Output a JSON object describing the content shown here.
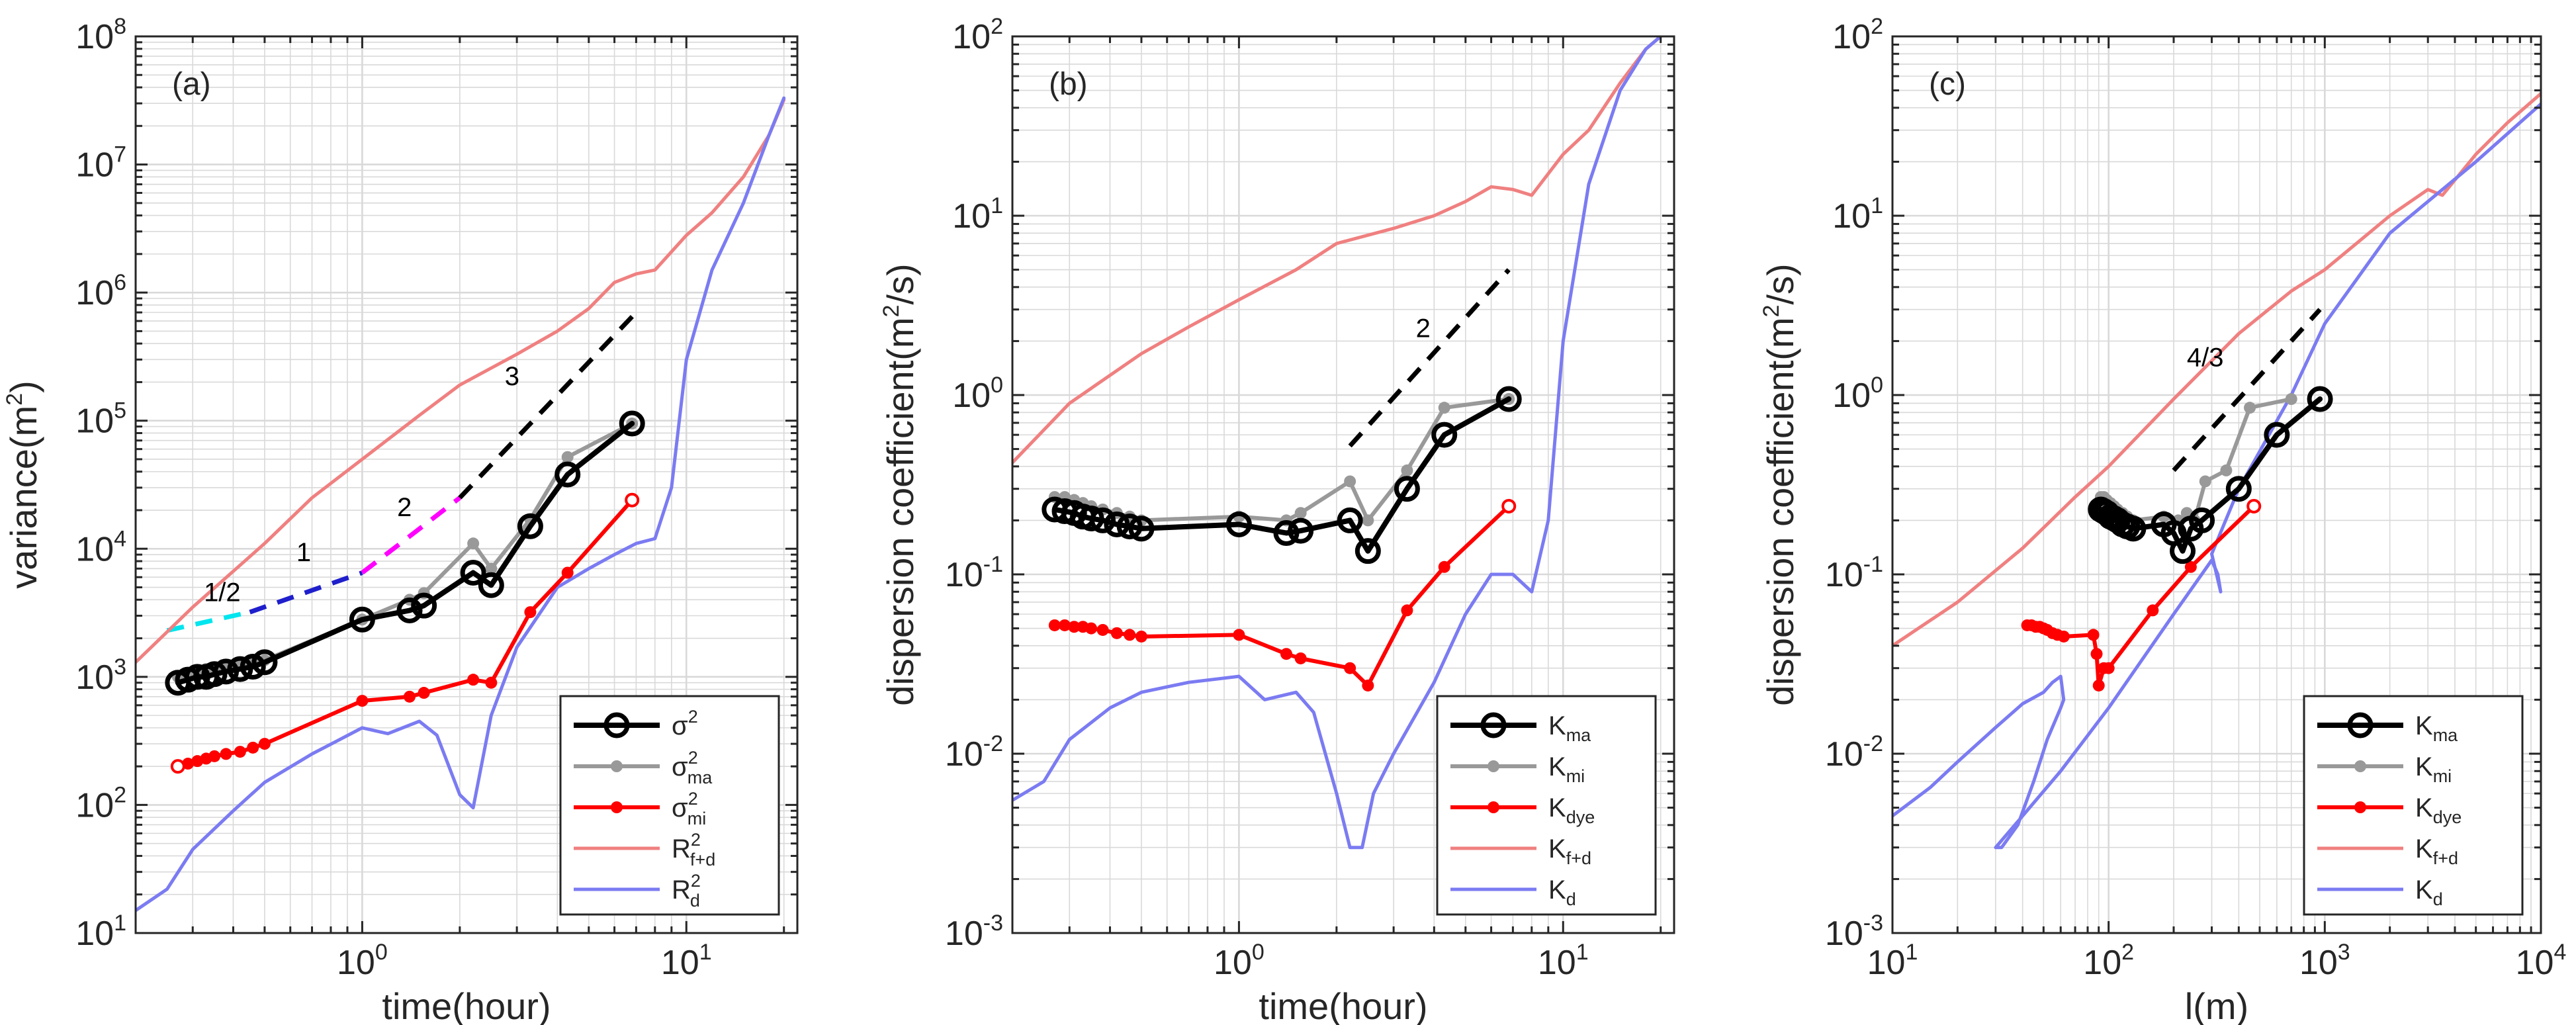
{
  "colors": {
    "black": "#000000",
    "gray": "#999999",
    "red": "#ff0000",
    "pink": "#f08080",
    "blue": "#7b7bf2",
    "cyan": "#00e5ee",
    "navy": "#1f1fcc",
    "magenta": "#ff00ff",
    "grid": "#d9d9d9",
    "axis": "#262626"
  },
  "chart_data": [
    {
      "type": "line",
      "panel_label": "(a)",
      "xlabel": "time(hour)",
      "ylabel": "variance(m",
      "ylabel_sup": "2",
      "ylabel_tail": ")",
      "xscale": "log",
      "yscale": "log",
      "xlim": [
        0.2,
        22
      ],
      "ylim": [
        10,
        100000000
      ],
      "xticks": [
        {
          "value": 1,
          "base": "10",
          "exp": "0"
        },
        {
          "value": 10,
          "base": "10",
          "exp": "1"
        }
      ],
      "yticks": [
        {
          "value": 10,
          "base": "10",
          "exp": "1"
        },
        {
          "value": 100,
          "base": "10",
          "exp": "2"
        },
        {
          "value": 1000,
          "base": "10",
          "exp": "3"
        },
        {
          "value": 10000,
          "base": "10",
          "exp": "4"
        },
        {
          "value": 100000,
          "base": "10",
          "exp": "5"
        },
        {
          "value": 1000000,
          "base": "10",
          "exp": "6"
        },
        {
          "value": 10000000,
          "base": "10",
          "exp": "7"
        },
        {
          "value": 100000000,
          "base": "10",
          "exp": "8"
        }
      ],
      "grid": true,
      "legend_position": "bottom-right",
      "series": [
        {
          "key": "rfd",
          "sym": "R",
          "sub": "f+d",
          "sup": "2",
          "color": "pink",
          "marker": "none",
          "width": 5,
          "x": [
            0.2,
            0.3,
            0.5,
            0.7,
            1,
            1.5,
            2,
            3,
            4,
            5,
            6,
            7,
            8,
            10,
            12,
            15,
            18,
            20
          ],
          "y": [
            1300,
            3500,
            11000,
            25000,
            50000,
            110000,
            190000,
            330000,
            500000,
            750000,
            1200000,
            1400000,
            1500000,
            2800000,
            4200000,
            8000000,
            17000000,
            32000000
          ]
        },
        {
          "key": "rd",
          "sym": "R",
          "sub": "d",
          "sup": "2",
          "color": "blue",
          "marker": "none",
          "width": 5,
          "x": [
            0.2,
            0.25,
            0.3,
            0.4,
            0.5,
            0.7,
            1.0,
            1.2,
            1.5,
            1.7,
            2.0,
            2.2,
            2.5,
            3,
            4,
            5,
            6,
            7,
            8,
            9,
            10,
            12,
            15,
            18,
            20
          ],
          "y": [
            15,
            22,
            45,
            90,
            150,
            250,
            400,
            360,
            450,
            350,
            120,
            95,
            500,
            1700,
            5000,
            7000,
            9000,
            11000,
            12000,
            30000,
            300000,
            1500000,
            5000000,
            17000000,
            33000000
          ]
        },
        {
          "key": "mi",
          "sym": "σ",
          "sub": "mi",
          "sup": "2",
          "color": "red",
          "marker": "dot",
          "width": 6,
          "x": [
            0.27,
            0.29,
            0.31,
            0.33,
            0.35,
            0.38,
            0.42,
            0.46,
            0.5,
            1.0,
            1.4,
            1.55,
            2.2,
            2.5,
            3.3,
            4.3,
            6.8
          ],
          "y": [
            200,
            210,
            220,
            230,
            240,
            250,
            260,
            280,
            300,
            650,
            700,
            750,
            950,
            900,
            3200,
            6500,
            24000
          ]
        },
        {
          "key": "ma_gray",
          "sym": "σ",
          "sub": "ma",
          "sup": "2",
          "color": "gray",
          "marker": "dot",
          "width": 6,
          "x": [
            0.27,
            0.29,
            0.31,
            0.33,
            0.35,
            0.38,
            0.42,
            0.46,
            0.5,
            1.0,
            1.4,
            1.55,
            2.2,
            2.5,
            3.3,
            4.3,
            6.8
          ],
          "y": [
            1000,
            1050,
            1100,
            1150,
            1150,
            1200,
            1250,
            1300,
            1350,
            2800,
            4000,
            4500,
            11000,
            7000,
            17000,
            52000,
            95000
          ]
        },
        {
          "key": "sigma",
          "sym": "σ",
          "sub": "",
          "sup": "2",
          "color": "black",
          "marker": "circle",
          "width": 8,
          "x": [
            0.27,
            0.29,
            0.31,
            0.33,
            0.35,
            0.38,
            0.42,
            0.46,
            0.5,
            1.0,
            1.4,
            1.55,
            2.2,
            2.5,
            3.3,
            4.3,
            6.8
          ],
          "y": [
            900,
            950,
            1000,
            1000,
            1050,
            1100,
            1150,
            1200,
            1300,
            2800,
            3300,
            3600,
            6500,
            5200,
            15000,
            38000,
            95000
          ]
        }
      ],
      "legend_order": [
        "sigma",
        "ma_gray",
        "mi",
        "rfd",
        "rd"
      ],
      "slopes": [
        {
          "color": "cyan",
          "x": [
            0.25,
            0.45
          ],
          "y": [
            2300,
            3200
          ],
          "label": "1/2",
          "label_at": [
            0.37,
            3900
          ]
        },
        {
          "color": "navy",
          "x": [
            0.45,
            1.0
          ],
          "y": [
            3200,
            6500
          ],
          "label": "1",
          "label_at": [
            0.66,
            8000
          ]
        },
        {
          "color": "magenta",
          "x": [
            1.0,
            2.0
          ],
          "y": [
            6500,
            25000
          ],
          "label": "2",
          "label_at": [
            1.35,
            18000
          ]
        },
        {
          "color": "black",
          "x": [
            2.0,
            7.0
          ],
          "y": [
            25000,
            700000
          ],
          "label": "3",
          "label_at": [
            2.9,
            190000
          ]
        }
      ]
    },
    {
      "type": "line",
      "panel_label": "(b)",
      "xlabel": "time(hour)",
      "ylabel": "dispersion coefficient(m",
      "ylabel_sup": "2",
      "ylabel_tail": "/s)",
      "xscale": "log",
      "yscale": "log",
      "xlim": [
        0.2,
        22
      ],
      "ylim": [
        0.001,
        100
      ],
      "xticks": [
        {
          "value": 1,
          "base": "10",
          "exp": "0"
        },
        {
          "value": 10,
          "base": "10",
          "exp": "1"
        }
      ],
      "yticks": [
        {
          "value": 0.001,
          "base": "10",
          "exp": "-3"
        },
        {
          "value": 0.01,
          "base": "10",
          "exp": "-2"
        },
        {
          "value": 0.1,
          "base": "10",
          "exp": "-1"
        },
        {
          "value": 1,
          "base": "10",
          "exp": "0"
        },
        {
          "value": 10,
          "base": "10",
          "exp": "1"
        },
        {
          "value": 100,
          "base": "10",
          "exp": "2"
        }
      ],
      "grid": true,
      "legend_position": "bottom-right",
      "series": [
        {
          "key": "kfd",
          "sym": "K",
          "sub": "f+d",
          "sup": "",
          "color": "pink",
          "marker": "none",
          "width": 5,
          "x": [
            0.2,
            0.3,
            0.5,
            0.7,
            1,
            1.5,
            2,
            3,
            4,
            5,
            6,
            7,
            8,
            10,
            12,
            15,
            18,
            20
          ],
          "y": [
            0.42,
            0.9,
            1.7,
            2.4,
            3.4,
            5,
            7,
            8.5,
            10,
            12,
            14.5,
            14,
            13,
            22,
            30,
            55,
            85,
            100
          ]
        },
        {
          "key": "kd",
          "sym": "K",
          "sub": "d",
          "sup": "",
          "color": "blue",
          "marker": "none",
          "width": 5,
          "x": [
            0.2,
            0.25,
            0.3,
            0.4,
            0.5,
            0.7,
            1.0,
            1.2,
            1.5,
            1.7,
            2.0,
            2.2,
            2.4,
            2.6,
            3,
            4,
            5,
            6,
            7,
            8,
            9,
            10,
            12,
            15,
            18,
            20
          ],
          "y": [
            0.0055,
            0.007,
            0.012,
            0.018,
            0.022,
            0.025,
            0.027,
            0.02,
            0.022,
            0.017,
            0.006,
            0.003,
            0.003,
            0.006,
            0.01,
            0.025,
            0.06,
            0.1,
            0.1,
            0.08,
            0.2,
            2,
            15,
            50,
            85,
            100
          ]
        },
        {
          "key": "kdye",
          "sym": "K",
          "sub": "dye",
          "sup": "",
          "color": "red",
          "marker": "dot",
          "width": 6,
          "x": [
            0.27,
            0.29,
            0.31,
            0.33,
            0.35,
            0.38,
            0.42,
            0.46,
            0.5,
            1.0,
            1.4,
            1.55,
            2.2,
            2.5,
            3.3,
            4.3,
            6.8
          ],
          "y": [
            0.052,
            0.052,
            0.051,
            0.051,
            0.05,
            0.049,
            0.047,
            0.046,
            0.045,
            0.046,
            0.036,
            0.034,
            0.03,
            0.024,
            0.063,
            0.11,
            0.24
          ]
        },
        {
          "key": "kmi",
          "sym": "K",
          "sub": "mi",
          "sup": "",
          "color": "gray",
          "marker": "dot",
          "width": 6,
          "x": [
            0.27,
            0.29,
            0.31,
            0.33,
            0.35,
            0.38,
            0.42,
            0.46,
            0.5,
            1.0,
            1.4,
            1.55,
            2.2,
            2.5,
            3.3,
            4.3,
            6.8
          ],
          "y": [
            0.27,
            0.27,
            0.26,
            0.25,
            0.24,
            0.23,
            0.22,
            0.21,
            0.2,
            0.21,
            0.2,
            0.22,
            0.33,
            0.2,
            0.38,
            0.85,
            0.95
          ]
        },
        {
          "key": "kma",
          "sym": "K",
          "sub": "ma",
          "sup": "",
          "color": "black",
          "marker": "circle",
          "width": 8,
          "x": [
            0.27,
            0.29,
            0.31,
            0.33,
            0.35,
            0.38,
            0.42,
            0.46,
            0.5,
            1.0,
            1.4,
            1.55,
            2.2,
            2.5,
            3.3,
            4.3,
            6.8
          ],
          "y": [
            0.23,
            0.225,
            0.22,
            0.21,
            0.205,
            0.2,
            0.19,
            0.185,
            0.18,
            0.19,
            0.17,
            0.175,
            0.2,
            0.135,
            0.3,
            0.6,
            0.95
          ]
        }
      ],
      "legend_order": [
        "kma",
        "kmi",
        "kdye",
        "kfd",
        "kd"
      ],
      "slopes": [
        {
          "color": "black",
          "x": [
            2.2,
            6.8
          ],
          "y": [
            0.52,
            5.0
          ],
          "label": "2",
          "label_at": [
            3.7,
            2.1
          ]
        }
      ]
    },
    {
      "type": "line",
      "panel_label": "(c)",
      "xlabel": "l(m)",
      "ylabel": "dispersion coefficient(m",
      "ylabel_sup": "2",
      "ylabel_tail": "/s)",
      "xscale": "log",
      "yscale": "log",
      "xlim": [
        10,
        10000
      ],
      "ylim": [
        0.001,
        100
      ],
      "xticks": [
        {
          "value": 10,
          "base": "10",
          "exp": "1"
        },
        {
          "value": 100,
          "base": "10",
          "exp": "2"
        },
        {
          "value": 1000,
          "base": "10",
          "exp": "3"
        },
        {
          "value": 10000,
          "base": "10",
          "exp": "4"
        }
      ],
      "yticks": [
        {
          "value": 0.001,
          "base": "10",
          "exp": "-3"
        },
        {
          "value": 0.01,
          "base": "10",
          "exp": "-2"
        },
        {
          "value": 0.1,
          "base": "10",
          "exp": "-1"
        },
        {
          "value": 1,
          "base": "10",
          "exp": "0"
        },
        {
          "value": 10,
          "base": "10",
          "exp": "1"
        },
        {
          "value": 100,
          "base": "10",
          "exp": "2"
        }
      ],
      "grid": true,
      "legend_position": "bottom-right",
      "series": [
        {
          "key": "kfd",
          "sym": "K",
          "sub": "f+d",
          "sup": "",
          "color": "pink",
          "marker": "none",
          "width": 5,
          "x": [
            10,
            20,
            40,
            70,
            100,
            200,
            400,
            700,
            1000,
            2000,
            3000,
            3500,
            5000,
            7000,
            10000
          ],
          "y": [
            0.04,
            0.07,
            0.14,
            0.27,
            0.4,
            0.95,
            2.2,
            3.8,
            5,
            10,
            14,
            13,
            22,
            33,
            48
          ]
        },
        {
          "key": "kd",
          "sym": "K",
          "sub": "d",
          "sup": "",
          "color": "blue",
          "marker": "none",
          "width": 5,
          "x": [
            10,
            15,
            20,
            30,
            40,
            50,
            55,
            60,
            62,
            60,
            52,
            45,
            38,
            32,
            30,
            40,
            60,
            100,
            200,
            300,
            320,
            330,
            300,
            400,
            700,
            1000,
            2000,
            5000,
            10000
          ],
          "y": [
            0.0045,
            0.0065,
            0.009,
            0.014,
            0.019,
            0.022,
            0.025,
            0.027,
            0.02,
            0.018,
            0.012,
            0.007,
            0.004,
            0.003,
            0.003,
            0.0045,
            0.008,
            0.018,
            0.06,
            0.12,
            0.1,
            0.08,
            0.13,
            0.3,
            1,
            2.5,
            8,
            20,
            42
          ]
        },
        {
          "key": "kdye",
          "sym": "K",
          "sub": "dye",
          "sup": "",
          "color": "red",
          "marker": "dot",
          "width": 6,
          "x": [
            42,
            44,
            46,
            48,
            50,
            52,
            55,
            58,
            62,
            85,
            88,
            90,
            95,
            100,
            160,
            240,
            470
          ],
          "y": [
            0.052,
            0.052,
            0.051,
            0.051,
            0.05,
            0.049,
            0.047,
            0.046,
            0.045,
            0.046,
            0.036,
            0.024,
            0.03,
            0.03,
            0.063,
            0.11,
            0.24
          ]
        },
        {
          "key": "kmi",
          "sym": "K",
          "sub": "mi",
          "sup": "",
          "color": "gray",
          "marker": "dot",
          "width": 6,
          "x": [
            92,
            95,
            98,
            102,
            106,
            110,
            116,
            122,
            130,
            180,
            210,
            230,
            250,
            280,
            350,
            450,
            700
          ],
          "y": [
            0.27,
            0.27,
            0.26,
            0.25,
            0.24,
            0.23,
            0.22,
            0.21,
            0.2,
            0.21,
            0.2,
            0.22,
            0.2,
            0.33,
            0.38,
            0.85,
            0.95
          ]
        },
        {
          "key": "kma",
          "sym": "K",
          "sub": "ma",
          "sup": "",
          "color": "black",
          "marker": "circle",
          "width": 8,
          "x": [
            92,
            95,
            98,
            102,
            106,
            110,
            116,
            122,
            130,
            180,
            200,
            220,
            240,
            270,
            400,
            600,
            950
          ],
          "y": [
            0.23,
            0.225,
            0.22,
            0.21,
            0.205,
            0.2,
            0.19,
            0.185,
            0.18,
            0.19,
            0.17,
            0.135,
            0.18,
            0.2,
            0.3,
            0.6,
            0.95
          ]
        }
      ],
      "legend_order": [
        "kma",
        "kmi",
        "kdye",
        "kfd",
        "kd"
      ],
      "slopes": [
        {
          "color": "black",
          "x": [
            200,
            950
          ],
          "y": [
            0.38,
            3.0
          ],
          "label": "4/3",
          "label_at": [
            280,
            1.45
          ]
        }
      ]
    }
  ]
}
